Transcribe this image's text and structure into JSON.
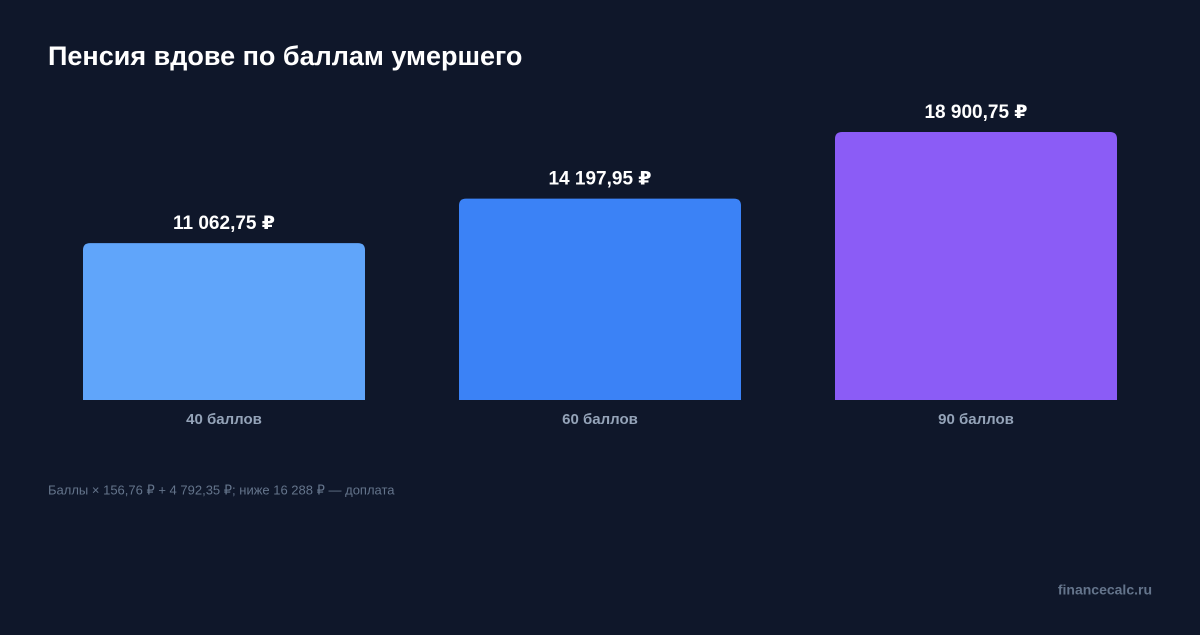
{
  "chart_data": {
    "type": "bar",
    "title": "Пенсия вдове по баллам умершего",
    "categories": [
      "40 баллов",
      "60 баллов",
      "90 баллов"
    ],
    "values": [
      11062.75,
      14197.95,
      18900.75
    ],
    "value_labels": [
      "11 062,75 ₽",
      "14 197,95 ₽",
      "18 900,75 ₽"
    ],
    "colors": [
      "#60a5fa",
      "#3b82f6",
      "#8b5cf6"
    ],
    "footnote": "Баллы × 156,76 ₽ + 4 792,35 ₽; ниже 16 288 ₽ — доплата",
    "source": "financecalc.ru"
  }
}
